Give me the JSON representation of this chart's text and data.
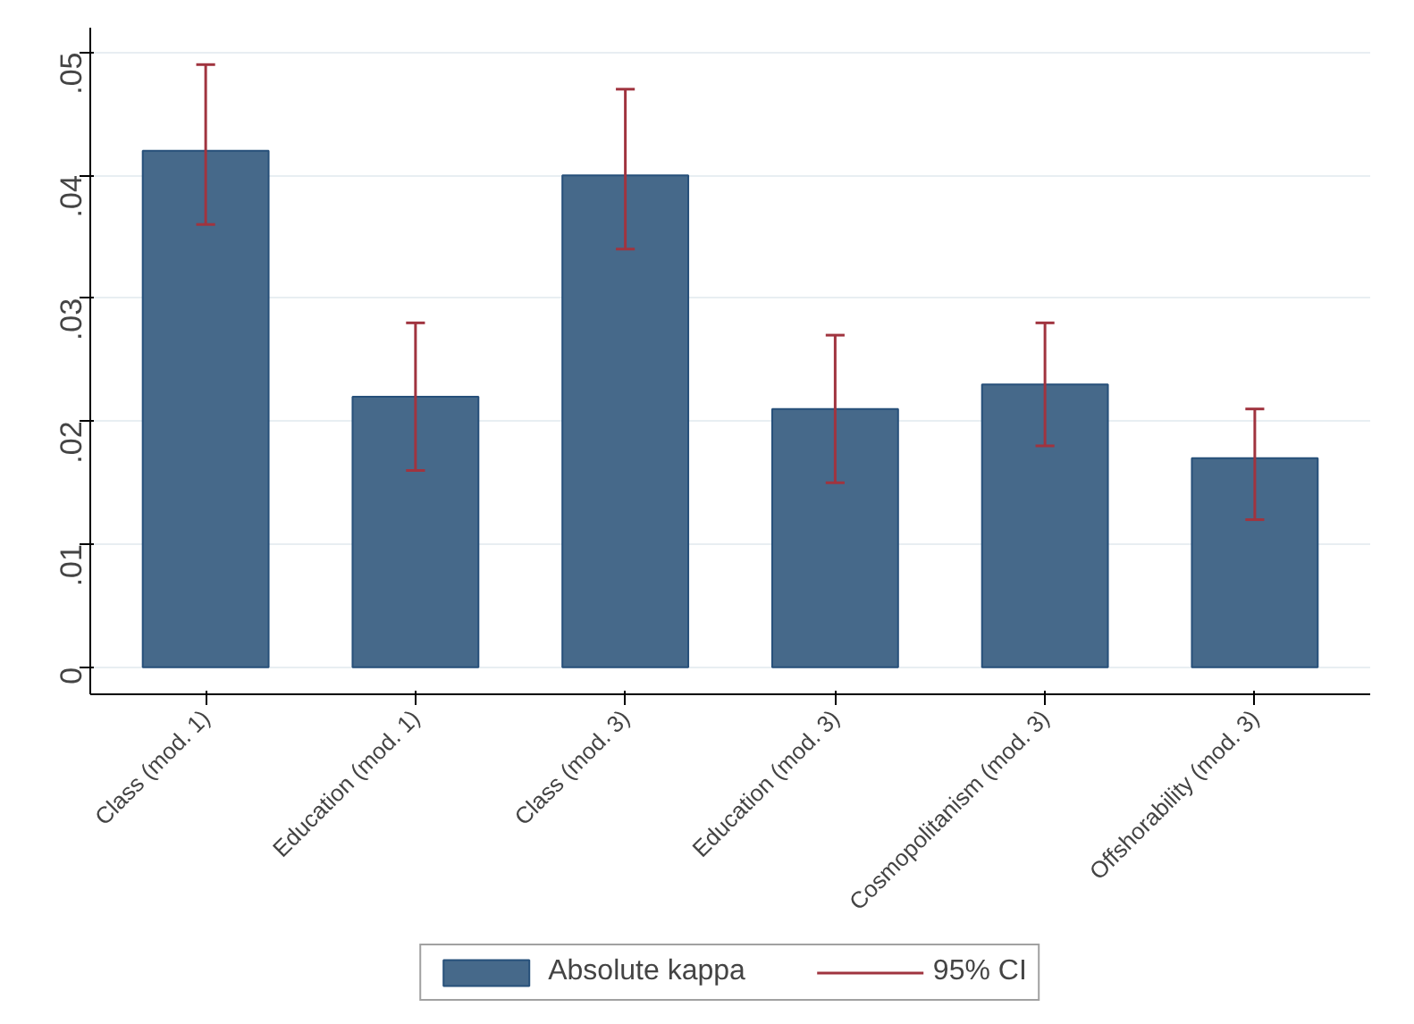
{
  "chart_data": {
    "type": "bar",
    "categories": [
      "Class (mod. 1)",
      "Education (mod. 1)",
      "Class (mod. 3)",
      "Education (mod. 3)",
      "Cosmopolitanism (mod. 3)",
      "Offshorability (mod. 3)"
    ],
    "series": [
      {
        "name": "Absolute kappa",
        "color": "#46698a",
        "values": [
          0.042,
          0.022,
          0.04,
          0.021,
          0.023,
          0.017
        ],
        "errors": [
          [
            0.036,
            0.049
          ],
          [
            0.016,
            0.028
          ],
          [
            0.034,
            0.047
          ],
          [
            0.015,
            0.027
          ],
          [
            0.018,
            0.028
          ],
          [
            0.012,
            0.021
          ]
        ]
      }
    ],
    "annotations": [
      "95% CI"
    ],
    "ylim": [
      -0.0022,
      0.052
    ],
    "yticks": [
      0,
      {
        "value": 0.01,
        "label": ".01"
      },
      {
        "value": 0.02,
        "label": ".02"
      },
      {
        "value": 0.03,
        "label": ".03"
      },
      {
        "value": 0.04,
        "label": ".04"
      },
      {
        "value": 0.05,
        "label": ".05"
      }
    ],
    "grid": "y",
    "legend": "bottom"
  }
}
